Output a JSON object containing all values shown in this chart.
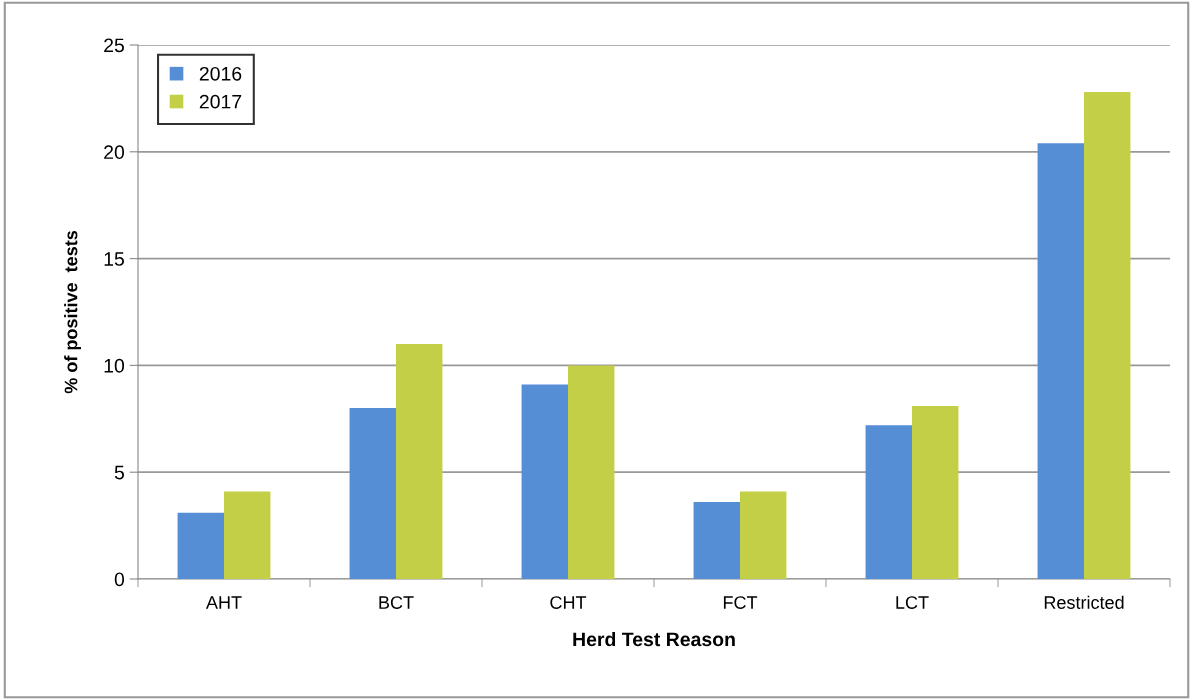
{
  "chart_data": {
    "type": "bar",
    "xlabel": "Herd Test Reason",
    "ylabel": "% of positive  tests",
    "categories": [
      "AHT",
      "BCT",
      "CHT",
      "FCT",
      "LCT",
      "Restricted"
    ],
    "series": [
      {
        "name": "2016",
        "color": "#558ed5",
        "values": [
          3.1,
          8.0,
          9.1,
          3.6,
          7.2,
          20.4
        ]
      },
      {
        "name": "2017",
        "color": "#c3cf46",
        "values": [
          4.1,
          11.0,
          10.0,
          4.1,
          8.1,
          22.8
        ]
      }
    ],
    "ylim": [
      0,
      25
    ],
    "yticks": [
      0,
      5,
      10,
      15,
      20,
      25
    ],
    "grid": "y",
    "legend": "top left"
  }
}
